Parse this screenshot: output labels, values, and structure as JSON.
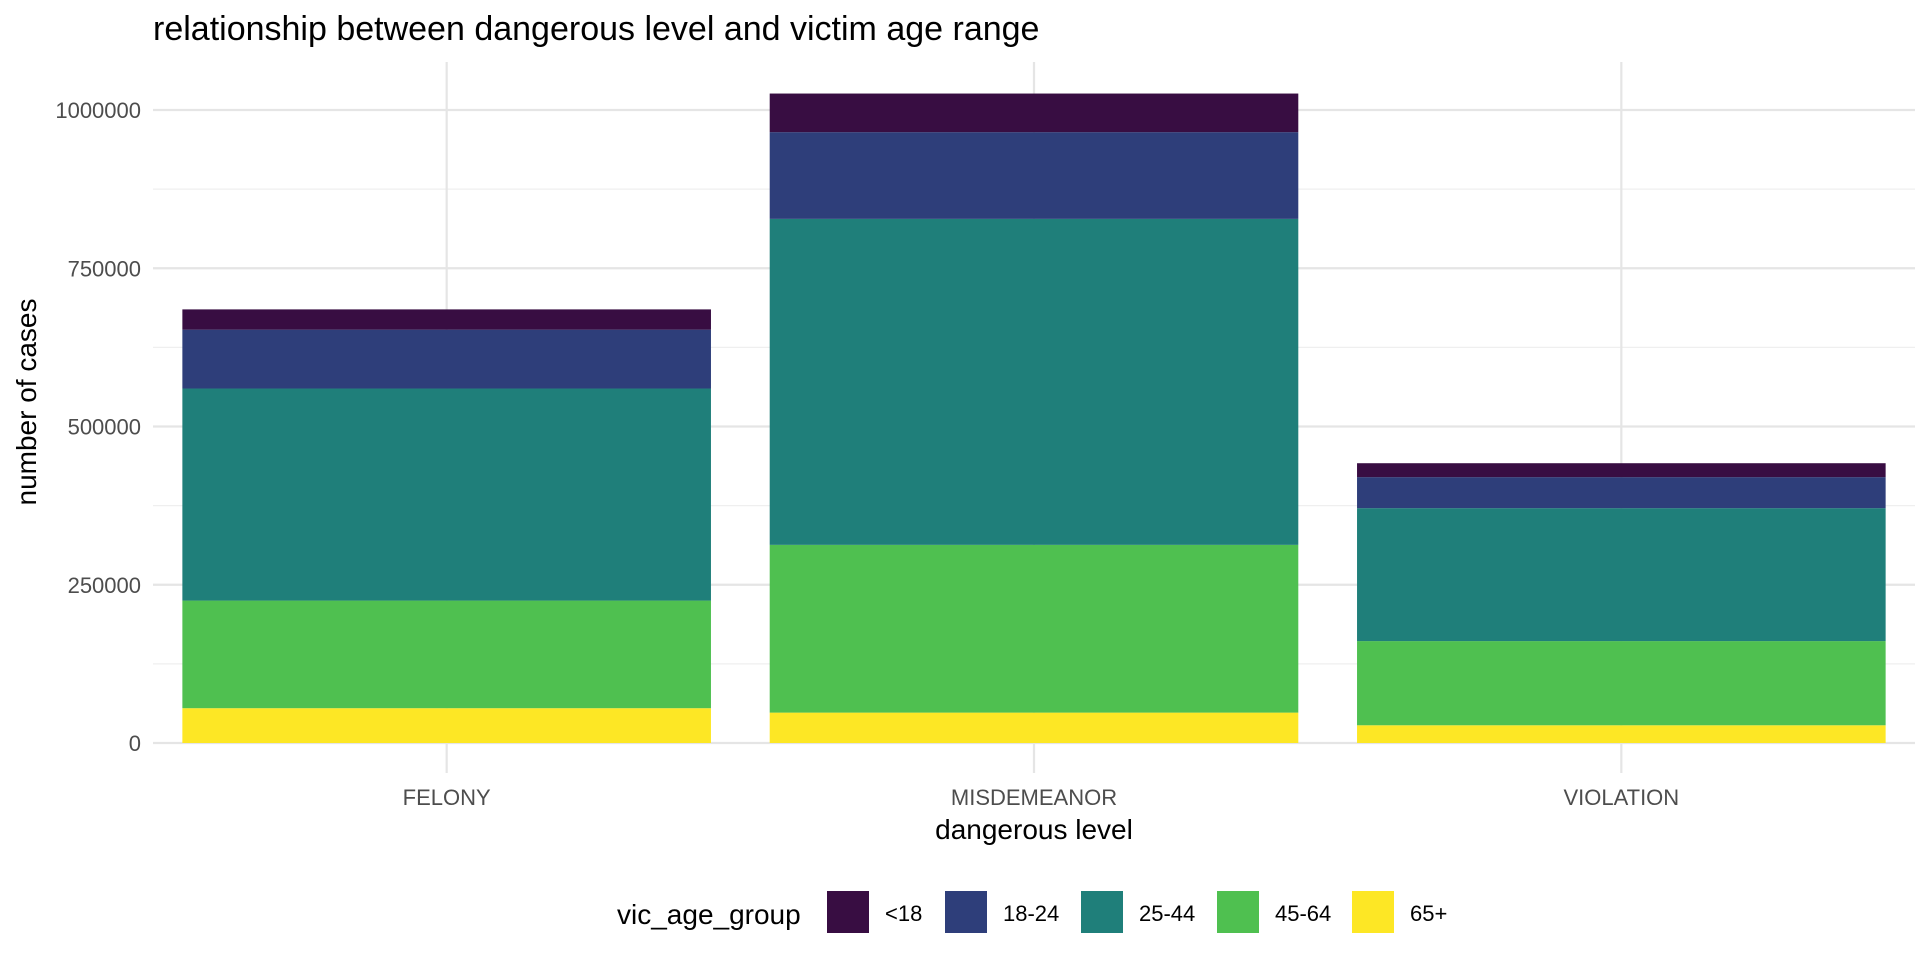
{
  "chart_data": {
    "type": "bar",
    "stacked": true,
    "title": "relationship between dangerous level and victim age range",
    "xlabel": "dangerous level",
    "ylabel": "number of cases",
    "categories": [
      "FELONY",
      "MISDEMEANOR",
      "VIOLATION"
    ],
    "ylim": [
      0,
      1065000
    ],
    "y_ticks": [
      0,
      250000,
      500000,
      750000,
      1000000
    ],
    "y_tick_labels": [
      "0",
      "250000",
      "500000",
      "750000",
      "1000000"
    ],
    "grid": true,
    "legend": {
      "title": "vic_age_group",
      "position": "bottom"
    },
    "series": [
      {
        "name": "65+",
        "color": "#FDE725",
        "values": [
          55000,
          48000,
          28000
        ]
      },
      {
        "name": "45-64",
        "color": "#4FC050",
        "values": [
          170000,
          265000,
          133000
        ]
      },
      {
        "name": "25-44",
        "color": "#1F7F7A",
        "values": [
          335000,
          515000,
          210000
        ]
      },
      {
        "name": "18-24",
        "color": "#2E3E7A",
        "values": [
          93000,
          137000,
          49000
        ]
      },
      {
        "name": "<18",
        "color": "#380D42",
        "values": [
          32000,
          61000,
          22000
        ]
      }
    ],
    "legend_order": [
      "<18",
      "18-24",
      "25-44",
      "45-64",
      "65+"
    ]
  }
}
